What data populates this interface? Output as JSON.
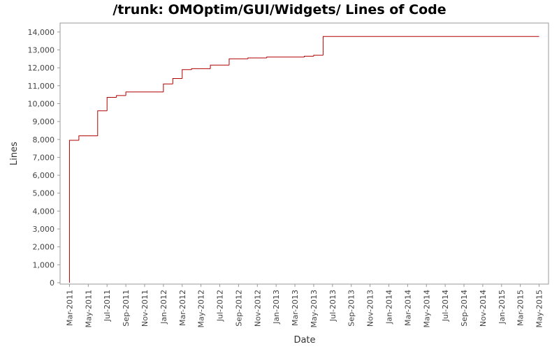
{
  "chart_data": {
    "type": "step",
    "title": "/trunk: OMOptim/GUI/Widgets/ Lines of Code",
    "x_label": "Date",
    "y_label": "Lines",
    "x": [
      "2011-03",
      "2011-03",
      "2011-04",
      "2011-06",
      "2011-07",
      "2011-08",
      "2011-09",
      "2012-01",
      "2012-02",
      "2012-03",
      "2012-04",
      "2012-06",
      "2012-08",
      "2012-10",
      "2012-12",
      "2013-04",
      "2013-05",
      "2013-06",
      "2013-06",
      "2015-05"
    ],
    "values": [
      0,
      7950,
      8200,
      9600,
      10350,
      10450,
      10650,
      11100,
      11400,
      11900,
      11950,
      12150,
      12500,
      12550,
      12600,
      12650,
      12700,
      13500,
      13750,
      13750
    ],
    "color": "#b00000",
    "xlim": [
      "2011-02",
      "2015-06"
    ],
    "xticks": [
      {
        "value": "2011-03",
        "label": "Mar-2011"
      },
      {
        "value": "2011-05",
        "label": "May-2011"
      },
      {
        "value": "2011-07",
        "label": "Jul-2011"
      },
      {
        "value": "2011-09",
        "label": "Sep-2011"
      },
      {
        "value": "2011-11",
        "label": "Nov-2011"
      },
      {
        "value": "2012-01",
        "label": "Jan-2012"
      },
      {
        "value": "2012-03",
        "label": "Mar-2012"
      },
      {
        "value": "2012-05",
        "label": "May-2012"
      },
      {
        "value": "2012-07",
        "label": "Jul-2012"
      },
      {
        "value": "2012-09",
        "label": "Sep-2012"
      },
      {
        "value": "2012-11",
        "label": "Nov-2012"
      },
      {
        "value": "2013-01",
        "label": "Jan-2013"
      },
      {
        "value": "2013-03",
        "label": "Mar-2013"
      },
      {
        "value": "2013-05",
        "label": "May-2013"
      },
      {
        "value": "2013-07",
        "label": "Jul-2013"
      },
      {
        "value": "2013-09",
        "label": "Sep-2013"
      },
      {
        "value": "2013-11",
        "label": "Nov-2013"
      },
      {
        "value": "2014-01",
        "label": "Jan-2014"
      },
      {
        "value": "2014-03",
        "label": "Mar-2014"
      },
      {
        "value": "2014-05",
        "label": "May-2014"
      },
      {
        "value": "2014-07",
        "label": "Jul-2014"
      },
      {
        "value": "2014-09",
        "label": "Sep-2014"
      },
      {
        "value": "2014-11",
        "label": "Nov-2014"
      },
      {
        "value": "2015-01",
        "label": "Jan-2015"
      },
      {
        "value": "2015-03",
        "label": "Mar-2015"
      },
      {
        "value": "2015-05",
        "label": "May-2015"
      }
    ],
    "ylim": [
      0,
      14500
    ],
    "yticks": [
      0,
      {
        "value": 1000,
        "label": "1,000"
      },
      {
        "value": 2000,
        "label": "2,000"
      },
      {
        "value": 3000,
        "label": "3,000"
      },
      {
        "value": 4000,
        "label": "4,000"
      },
      {
        "value": 5000,
        "label": "5,000"
      },
      {
        "value": 6000,
        "label": "6,000"
      },
      {
        "value": 7000,
        "label": "7,000"
      },
      {
        "value": 8000,
        "label": "8,000"
      },
      {
        "value": 9000,
        "label": "9,000"
      },
      {
        "value": 10000,
        "label": "10,000"
      },
      {
        "value": 11000,
        "label": "11,000"
      },
      {
        "value": 12000,
        "label": "12,000"
      },
      {
        "value": 13000,
        "label": "13,000"
      },
      {
        "value": 14000,
        "label": "14,000"
      }
    ]
  }
}
